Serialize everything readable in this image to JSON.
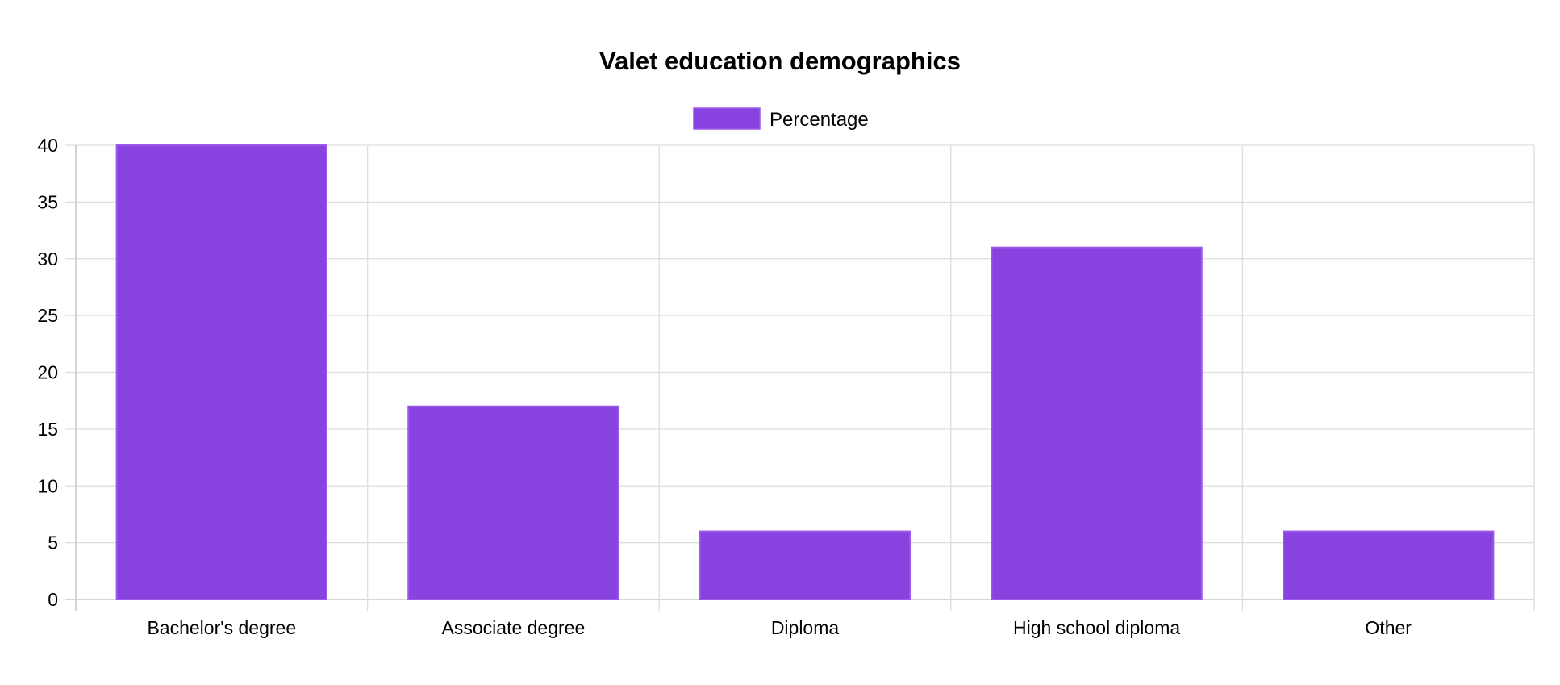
{
  "chart_data": {
    "type": "bar",
    "title": "Valet education demographics",
    "categories": [
      "Bachelor's degree",
      "Associate degree",
      "Diploma",
      "High school diploma",
      "Other"
    ],
    "series": [
      {
        "name": "Percentage",
        "values": [
          40,
          17,
          6,
          31,
          6
        ],
        "color": "#8842df",
        "border_color": "#9b59e8"
      }
    ],
    "ylim": [
      0,
      40
    ],
    "y_ticks": [
      0,
      5,
      10,
      15,
      20,
      25,
      30,
      35,
      40
    ],
    "grid": true,
    "legend": "top-center"
  }
}
